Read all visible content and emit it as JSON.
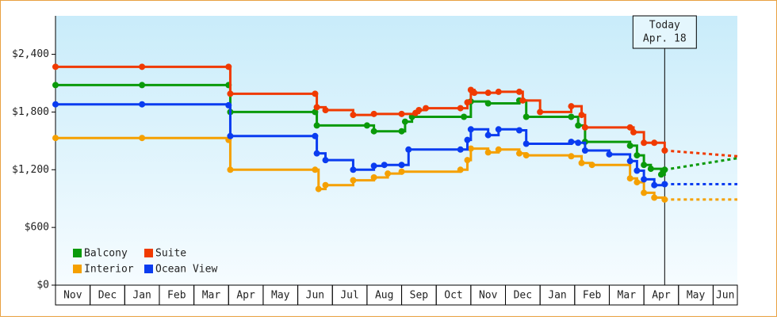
{
  "chart_data": {
    "type": "step-line",
    "categories": [
      "Nov",
      "Dec",
      "Jan",
      "Feb",
      "Mar",
      "Apr",
      "May",
      "Jun",
      "Jul",
      "Aug",
      "Sep",
      "Oct",
      "Nov",
      "Dec",
      "Jan",
      "Feb",
      "Mar",
      "Apr",
      "May",
      "Jun"
    ],
    "xlim": [
      0,
      19.7
    ],
    "ylim": [
      0,
      2800
    ],
    "yticks": [
      {
        "value": 0,
        "label": "$0"
      },
      {
        "value": 600,
        "label": "$600"
      },
      {
        "value": 1200,
        "label": "$1,200"
      },
      {
        "value": 1800,
        "label": "$1,800"
      },
      {
        "value": 2400,
        "label": "$2,400"
      }
    ],
    "legend": "lower left",
    "annotation": {
      "x": 17.6,
      "lines": [
        "Today",
        "Apr. 18"
      ]
    },
    "series": [
      {
        "name": "Balcony",
        "color": "#0a9a0a",
        "x": [
          0,
          2.5,
          5.0,
          5.05,
          7.5,
          7.55,
          9.0,
          9.2,
          10.0,
          10.1,
          10.3,
          11.8,
          12.0,
          12.5,
          13.4,
          13.6,
          14.9,
          15.1,
          15.3,
          16.6,
          16.8,
          17.0,
          17.2,
          17.5,
          17.6
        ],
        "values": [
          2080,
          2080,
          2080,
          1800,
          1800,
          1660,
          1660,
          1600,
          1600,
          1700,
          1750,
          1750,
          1910,
          1890,
          1920,
          1750,
          1750,
          1660,
          1490,
          1450,
          1350,
          1250,
          1210,
          1150,
          1200
        ],
        "forecast_x": [
          17.6,
          19.7
        ],
        "forecast_values": [
          1200,
          1320
        ]
      },
      {
        "name": "Suite",
        "color": "#f03a00",
        "x": [
          0,
          2.5,
          5.0,
          5.05,
          7.5,
          7.55,
          7.8,
          8.6,
          9.2,
          10.0,
          10.4,
          10.5,
          10.7,
          11.7,
          11.9,
          12.0,
          12.1,
          12.5,
          12.8,
          13.4,
          13.5,
          14.0,
          14.9,
          15.2,
          15.3,
          16.6,
          16.7,
          17.0,
          17.3,
          17.6
        ],
        "values": [
          2270,
          2270,
          2270,
          1990,
          1990,
          1850,
          1820,
          1770,
          1780,
          1780,
          1790,
          1820,
          1840,
          1840,
          1900,
          2030,
          2000,
          2000,
          2010,
          2010,
          1920,
          1800,
          1860,
          1770,
          1640,
          1640,
          1590,
          1480,
          1480,
          1400
        ],
        "forecast_x": [
          17.6,
          19.7
        ],
        "forecast_values": [
          1400,
          1340
        ]
      },
      {
        "name": "Interior",
        "color": "#f5a000",
        "x": [
          0,
          2.5,
          5.0,
          5.05,
          7.5,
          7.6,
          7.8,
          8.6,
          9.2,
          9.6,
          10.0,
          11.7,
          11.9,
          12.0,
          12.5,
          12.8,
          13.4,
          13.6,
          14.9,
          15.2,
          15.5,
          16.6,
          16.8,
          17.0,
          17.3,
          17.6
        ],
        "values": [
          1530,
          1530,
          1510,
          1200,
          1200,
          1000,
          1040,
          1090,
          1120,
          1160,
          1180,
          1200,
          1300,
          1420,
          1380,
          1410,
          1370,
          1350,
          1340,
          1270,
          1250,
          1110,
          1070,
          960,
          910,
          890
        ],
        "forecast_x": [
          17.6,
          19.7
        ],
        "forecast_values": [
          890,
          890
        ]
      },
      {
        "name": "Ocean View",
        "color": "#0a3cf0",
        "x": [
          0,
          2.5,
          5.0,
          5.05,
          7.5,
          7.55,
          7.8,
          8.6,
          9.2,
          9.5,
          10.0,
          10.2,
          11.7,
          11.9,
          12.0,
          12.5,
          12.8,
          13.4,
          13.6,
          14.9,
          15.1,
          15.3,
          16.0,
          16.6,
          16.8,
          17.0,
          17.3,
          17.6
        ],
        "values": [
          1880,
          1880,
          1870,
          1550,
          1550,
          1370,
          1300,
          1200,
          1240,
          1250,
          1250,
          1410,
          1410,
          1510,
          1620,
          1560,
          1620,
          1610,
          1470,
          1490,
          1480,
          1400,
          1360,
          1290,
          1190,
          1100,
          1040,
          1050
        ],
        "forecast_x": [
          17.6,
          19.7
        ],
        "forecast_values": [
          1050,
          1050
        ]
      }
    ]
  }
}
